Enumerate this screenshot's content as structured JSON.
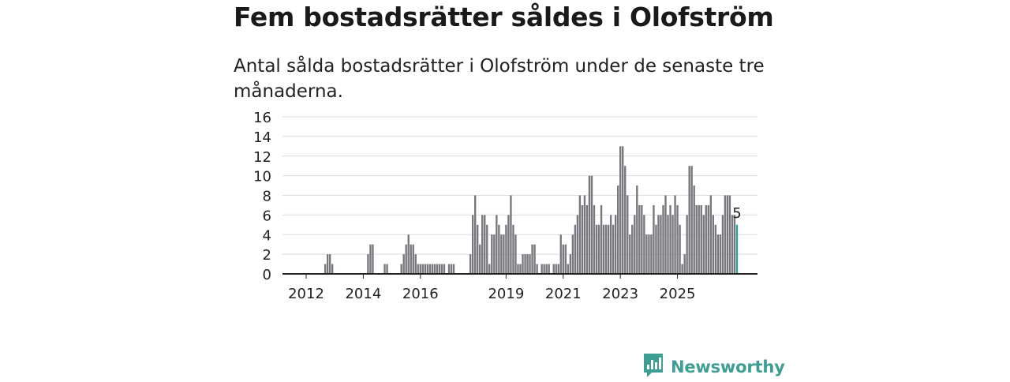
{
  "header": {
    "title": "Fem bostadsrätter såldes i Olofström",
    "subtitle": "Antal sålda bostadsrätter i Olofström under de senaste tre månaderna."
  },
  "brand": {
    "name": "Newsworthy",
    "icon": "newsworthy-logo-icon",
    "color": "#3e9e93"
  },
  "colors": {
    "bar": "#77777d",
    "highlight": "#2aa198",
    "axis": "#222222",
    "grid": "#dcdcdc"
  },
  "chart_data": {
    "type": "bar",
    "ylim": [
      0,
      16
    ],
    "yticks": [
      0,
      2,
      4,
      6,
      8,
      10,
      12,
      14,
      16
    ],
    "xticks": [
      "2012",
      "2014",
      "2016",
      "2019",
      "2021",
      "2023",
      "2025"
    ],
    "grid": true,
    "annotation": {
      "text": "5",
      "value": 5
    },
    "values": [
      0,
      0,
      0,
      0,
      0,
      0,
      0,
      0,
      1,
      2,
      2,
      1,
      0,
      0,
      0,
      0,
      0,
      0,
      0,
      0,
      0,
      0,
      0,
      0,
      0,
      0,
      2,
      3,
      3,
      0,
      0,
      0,
      0,
      1,
      1,
      0,
      0,
      0,
      0,
      0,
      1,
      2,
      3,
      4,
      3,
      3,
      2,
      1,
      1,
      1,
      1,
      1,
      1,
      1,
      1,
      1,
      1,
      1,
      1,
      0,
      1,
      1,
      1,
      0,
      0,
      0,
      0,
      0,
      0,
      2,
      6,
      8,
      5,
      3,
      6,
      6,
      5,
      1,
      4,
      4,
      6,
      5,
      4,
      4,
      5,
      6,
      8,
      5,
      4,
      1,
      1,
      2,
      2,
      2,
      2,
      3,
      3,
      1,
      0,
      1,
      1,
      1,
      1,
      0,
      1,
      1,
      1,
      4,
      3,
      3,
      1,
      2,
      4,
      5,
      6,
      8,
      7,
      8,
      7,
      10,
      10,
      7,
      5,
      5,
      7,
      5,
      5,
      5,
      6,
      5,
      6,
      9,
      13,
      13,
      11,
      8,
      4,
      5,
      6,
      9,
      7,
      7,
      6,
      4,
      4,
      4,
      7,
      5,
      6,
      6,
      7,
      8,
      6,
      7,
      6,
      8,
      7,
      5,
      1,
      2,
      6,
      11,
      11,
      9,
      7,
      7,
      7,
      6,
      7,
      7,
      8,
      6,
      5,
      4,
      4,
      6,
      8,
      8,
      8,
      6,
      6,
      5
    ],
    "highlight_last": true
  }
}
